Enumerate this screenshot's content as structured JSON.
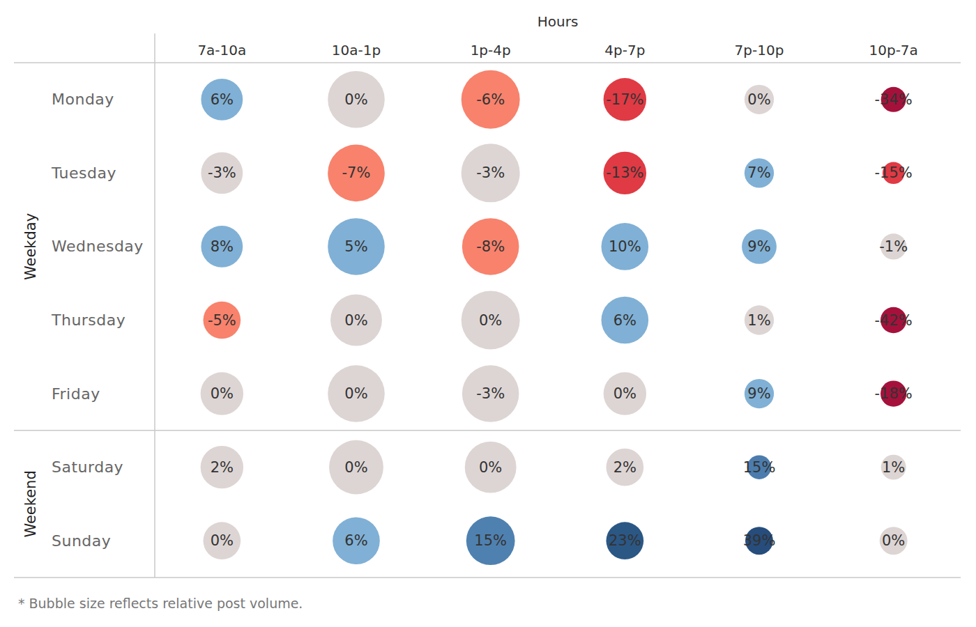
{
  "chart_data": {
    "type": "bubble_grid",
    "x_title": "Hours",
    "categories": [
      "7a-10a",
      "10a-1p",
      "1p-4p",
      "4p-7p",
      "7p-10p",
      "10p-7a"
    ],
    "groups": [
      {
        "name": "Weekday",
        "series": [
          {
            "name": "Monday",
            "values": [
              6,
              0,
              -6,
              -17,
              0,
              -34
            ],
            "value_labels": [
              "6%",
              "0%",
              "-6%",
              "-17%",
              "0%",
              "-34%"
            ],
            "sizes": [
              36,
              67,
              71,
              38,
              18,
              13
            ],
            "colors": [
              "#80b0d5",
              "#ddd5d4",
              "#f8826c",
              "#e03a44",
              "#ddd5d4",
              "#a6113c"
            ]
          },
          {
            "name": "Tuesday",
            "values": [
              -3,
              -7,
              -3,
              -13,
              7,
              -15
            ],
            "value_labels": [
              "-3%",
              "-7%",
              "-3%",
              "-13%",
              "7%",
              "-15%"
            ],
            "sizes": [
              36,
              67,
              71,
              38,
              18,
              10
            ],
            "colors": [
              "#ddd5d4",
              "#f8826c",
              "#ddd5d4",
              "#e03a44",
              "#80b0d5",
              "#e03a44"
            ]
          },
          {
            "name": "Wednesday",
            "values": [
              8,
              5,
              -8,
              10,
              9,
              -1
            ],
            "value_labels": [
              "8%",
              "5%",
              "-8%",
              "10%",
              "9%",
              "-1%"
            ],
            "sizes": [
              36,
              67,
              67,
              46,
              25,
              14
            ],
            "colors": [
              "#80b0d5",
              "#80b0d5",
              "#f8826c",
              "#80b0d5",
              "#80b0d5",
              "#ddd5d4"
            ]
          },
          {
            "name": "Thursday",
            "values": [
              -5,
              0,
              0,
              6,
              1,
              -42
            ],
            "value_labels": [
              "-5%",
              "0%",
              "0%",
              "6%",
              "1%",
              "-42%"
            ],
            "sizes": [
              29,
              55,
              71,
              46,
              18,
              14
            ],
            "colors": [
              "#f8826c",
              "#ddd5d4",
              "#ddd5d4",
              "#80b0d5",
              "#ddd5d4",
              "#a6113c"
            ]
          },
          {
            "name": "Friday",
            "values": [
              0,
              0,
              -3,
              0,
              9,
              -18
            ],
            "value_labels": [
              "0%",
              "0%",
              "-3%",
              "0%",
              "9%",
              "-18%"
            ],
            "sizes": [
              38,
              67,
              67,
              38,
              18,
              14
            ],
            "colors": [
              "#ddd5d4",
              "#ddd5d4",
              "#ddd5d4",
              "#ddd5d4",
              "#80b0d5",
              "#a6113c"
            ]
          }
        ]
      },
      {
        "name": "Weekend",
        "series": [
          {
            "name": "Saturday",
            "values": [
              2,
              0,
              0,
              2,
              15,
              1
            ],
            "value_labels": [
              "2%",
              "0%",
              "0%",
              "2%",
              "15%",
              "1%"
            ],
            "sizes": [
              38,
              61,
              55,
              29,
              12,
              13
            ],
            "colors": [
              "#ddd5d4",
              "#ddd5d4",
              "#ddd5d4",
              "#ddd5d4",
              "#4c7cad",
              "#ddd5d4"
            ]
          },
          {
            "name": "Sunday",
            "values": [
              0,
              6,
              15,
              23,
              39,
              0
            ],
            "value_labels": [
              "0%",
              "6%",
              "15%",
              "23%",
              "39%",
              "0%"
            ],
            "sizes": [
              29,
              46,
              49,
              29,
              16,
              16
            ],
            "colors": [
              "#ddd5d4",
              "#80b0d5",
              "#4f81b0",
              "#2b5785",
              "#264d7c",
              "#ddd5d4"
            ]
          }
        ]
      }
    ],
    "footnote": "* Bubble size reflects relative post volume."
  }
}
